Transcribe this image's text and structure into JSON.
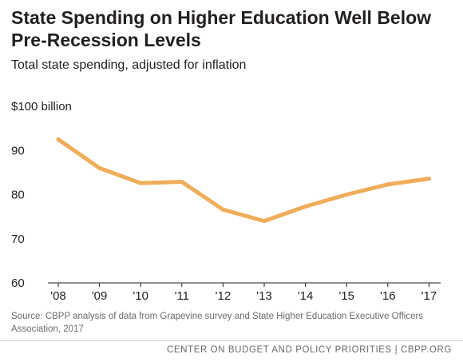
{
  "chart_data": {
    "type": "line",
    "title": "State Spending on Higher Education Well Below Pre-Recession Levels",
    "subtitle": "Total state spending, adjusted for inflation",
    "categories": [
      "'08",
      "'09",
      "'10",
      "'11",
      "'12",
      "'13",
      "'14",
      "'15",
      "'16",
      "'17"
    ],
    "series": [
      {
        "values": [
          92.5,
          86.0,
          82.6,
          82.9,
          76.6,
          74.0,
          77.3,
          80.0,
          82.3,
          83.6
        ]
      }
    ],
    "ylim": [
      60,
      100
    ],
    "yticks": [
      {
        "value": 100,
        "label": "$100 billion"
      },
      {
        "value": 90,
        "label": "90"
      },
      {
        "value": 80,
        "label": "80"
      },
      {
        "value": 70,
        "label": "70"
      },
      {
        "value": 60,
        "label": "60"
      }
    ],
    "grid": false,
    "line_color": "#f0ad5b",
    "source": "Source: CBPP analysis of data from Grapevine survey and State Higher Education Executive Officers Association, 2017",
    "footer": "CENTER ON BUDGET AND POLICY PRIORITIES | CBPP.ORG"
  }
}
